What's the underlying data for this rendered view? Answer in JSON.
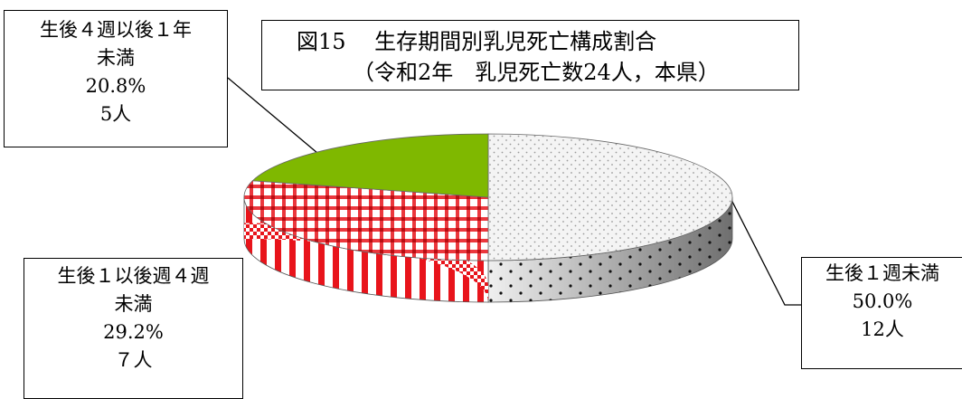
{
  "chart_data": {
    "type": "pie",
    "style": "3d",
    "title": "図15　 生存期間別乳児死亡構成割合",
    "subtitle": "（令和2年　乳児死亡数24人，本県）",
    "slices": [
      {
        "label_lines": [
          "生後１週未満",
          "50.0%",
          "12人"
        ],
        "value": 50.0,
        "count": 12,
        "color": "#f2f2f2",
        "pattern": "dots"
      },
      {
        "label_lines": [
          "生後１以後週４週",
          "未満",
          "29.2%",
          "７人"
        ],
        "value": 29.2,
        "count": 7,
        "color": "#e8141b",
        "pattern": "checker"
      },
      {
        "label_lines": [
          "生後４週以後１年",
          "未満",
          "20.8%",
          "5人"
        ],
        "value": 20.8,
        "count": 5,
        "color": "#7fb800",
        "pattern": "solid"
      }
    ]
  }
}
